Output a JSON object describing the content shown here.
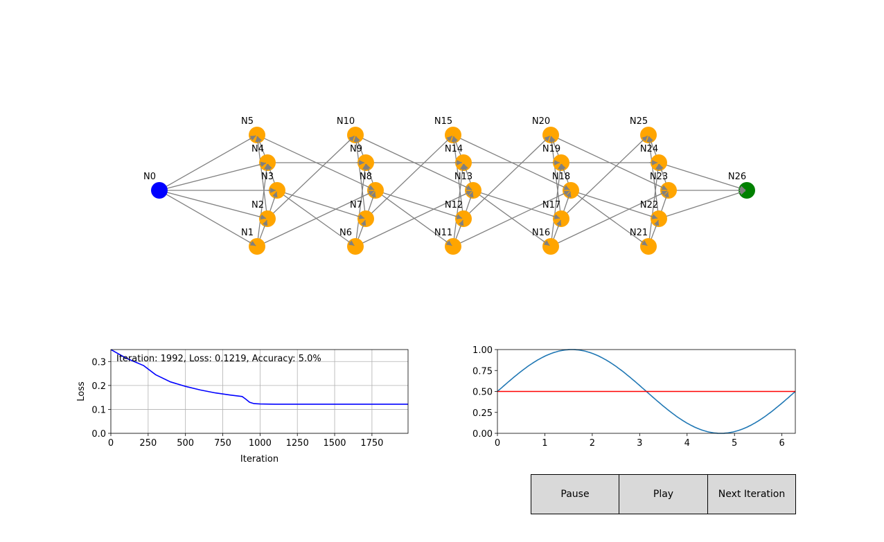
{
  "network": {
    "nodes": [
      "N0",
      "N1",
      "N2",
      "N3",
      "N4",
      "N5",
      "N6",
      "N7",
      "N8",
      "N9",
      "N10",
      "N11",
      "N12",
      "N13",
      "N14",
      "N15",
      "N16",
      "N17",
      "N18",
      "N19",
      "N20",
      "N21",
      "N22",
      "N23",
      "N24",
      "N25",
      "N26"
    ],
    "input_color": "#0000ff",
    "hidden_color": "#ffa500",
    "output_color": "#008000",
    "edge_color": "#808080"
  },
  "loss_chart": {
    "chart_data": {
      "type": "line",
      "xlabel": "Iteration",
      "ylabel": "Loss",
      "xlim": [
        0,
        1992
      ],
      "ylim": [
        0,
        0.35
      ],
      "xticks": [
        "0",
        "250",
        "500",
        "750",
        "1000",
        "1250",
        "1500",
        "1750"
      ],
      "yticks": [
        "0.0",
        "0.1",
        "0.2",
        "0.3"
      ],
      "grid": true,
      "color": "#0000ff",
      "annotation": "Iteration: 1992, Loss: 0.1219, Accuracy: 5.0%",
      "x": [
        0,
        100,
        220,
        300,
        400,
        500,
        600,
        700,
        800,
        880,
        900,
        930,
        960,
        1000,
        1100,
        1500,
        1992
      ],
      "y": [
        0.35,
        0.315,
        0.283,
        0.245,
        0.215,
        0.196,
        0.181,
        0.169,
        0.16,
        0.154,
        0.145,
        0.13,
        0.124,
        0.1225,
        0.1219,
        0.1219,
        0.1219
      ]
    }
  },
  "sine_chart": {
    "chart_data": {
      "type": "line",
      "xlim": [
        0,
        6.283
      ],
      "ylim": [
        0,
        1
      ],
      "xticks": [
        "0",
        "1",
        "2",
        "3",
        "4",
        "5",
        "6"
      ],
      "yticks": [
        "0.00",
        "0.25",
        "0.50",
        "0.75",
        "1.00"
      ],
      "grid": false,
      "series": [
        {
          "function": "0.5 + 0.5*sin(x)",
          "color": "#1f77b4"
        },
        {
          "function": "0.5",
          "color": "#ff0000"
        }
      ]
    }
  },
  "buttons": {
    "pause": "Pause",
    "play": "Play",
    "next": "Next Iteration"
  }
}
